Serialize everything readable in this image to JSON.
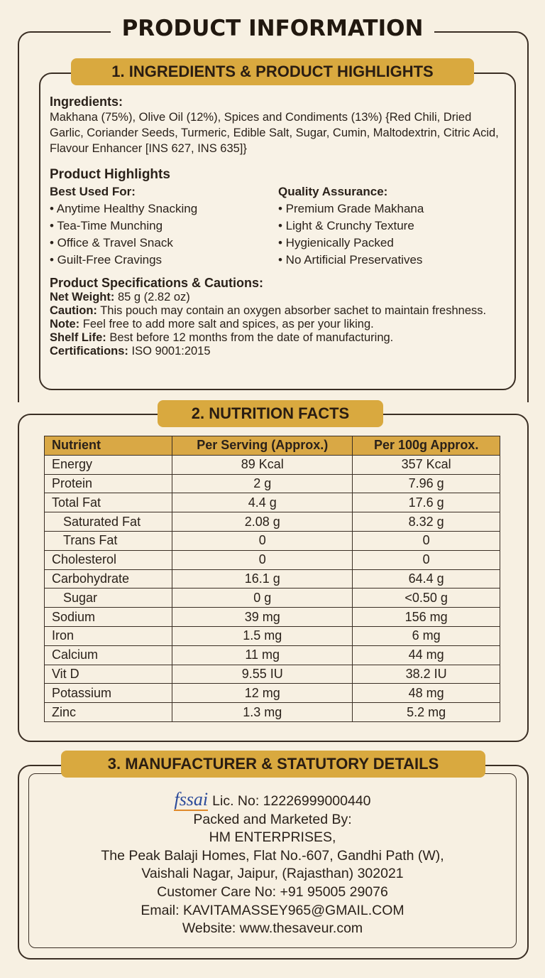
{
  "title": "PRODUCT INFORMATION",
  "section1": {
    "heading": "1. INGREDIENTS & PRODUCT HIGHLIGHTS",
    "ingredients_label": "Ingredients:",
    "ingredients_text": "Makhana (75%), Olive Oil (12%), Spices and Condiments (13%) {Red Chili, Dried Garlic, Coriander Seeds, Turmeric, Edible Salt, Sugar, Cumin, Maltodextrin, Citric Acid, Flavour Enhancer [INS 627, INS 635]}",
    "highlights_title": "Product Highlights",
    "best_used_for": {
      "label": "Best Used For:",
      "items": [
        "• Anytime Healthy Snacking",
        "• Tea-Time Munching",
        "• Office & Travel Snack",
        "• Guilt-Free Cravings"
      ]
    },
    "quality_assurance": {
      "label": "Quality Assurance:",
      "items": [
        "• Premium Grade Makhana",
        "• Light & Crunchy Texture",
        "• Hygienically Packed",
        "• No Artificial Preservatives"
      ]
    },
    "specs_title": "Product Specifications & Cautions:",
    "specs": [
      {
        "label": "Net Weight:",
        "text": "85 g (2.82 oz)"
      },
      {
        "label": "Caution:",
        "text": "This pouch may contain an oxygen absorber sachet to maintain freshness."
      },
      {
        "label": "Note:",
        "text": "Feel free to add more salt and spices, as per your liking."
      },
      {
        "label": "Shelf Life:",
        "text": "Best before 12 months from the date of manufacturing."
      },
      {
        "label": "Certifications:",
        "text": "ISO 9001:2015"
      }
    ]
  },
  "section2": {
    "heading": "2. NUTRITION FACTS",
    "table": {
      "header": [
        "Nutrient",
        "Per Serving (Approx.)",
        "Per 100g Approx."
      ],
      "rows": [
        [
          "Energy",
          "89 Kcal",
          "357 Kcal"
        ],
        [
          "Protein",
          "2 g",
          "7.96 g"
        ],
        [
          "Total Fat",
          "4.4 g",
          "17.6 g"
        ],
        [
          "Saturated Fat",
          "2.08 g",
          "8.32 g"
        ],
        [
          "Trans Fat",
          "0",
          "0"
        ],
        [
          "Cholesterol",
          "0",
          "0"
        ],
        [
          "Carbohydrate",
          "16.1 g",
          "64.4 g"
        ],
        [
          "Sugar",
          "0 g",
          "<0.50 g"
        ],
        [
          "Sodium",
          "39 mg",
          "156 mg"
        ],
        [
          "Iron",
          "1.5 mg",
          "6 mg"
        ],
        [
          "Calcium",
          "11 mg",
          "44 mg"
        ],
        [
          "Vit D",
          "9.55 IU",
          "38.2 IU"
        ],
        [
          "Potassium",
          "12 mg",
          "48 mg"
        ],
        [
          "Zinc",
          "1.3 mg",
          "5.2 mg"
        ]
      ]
    }
  },
  "section3": {
    "heading": "3. MANUFACTURER & STATUTORY DETAILS",
    "logo": "fssai",
    "license": "Lic. No: 12226999000440",
    "lines": [
      "Packed and Marketed By:",
      "HM ENTERPRISES,",
      "The Peak Balaji Homes, Flat No.-607, Gandhi Path (W),",
      "Vaishali Nagar, Jaipur, (Rajasthan) 302021",
      "Customer Care No: +91 95005 29076",
      "Email: KAVITAMASSEY965@GMAIL.COM",
      "Website: www.thesaveur.com"
    ]
  }
}
